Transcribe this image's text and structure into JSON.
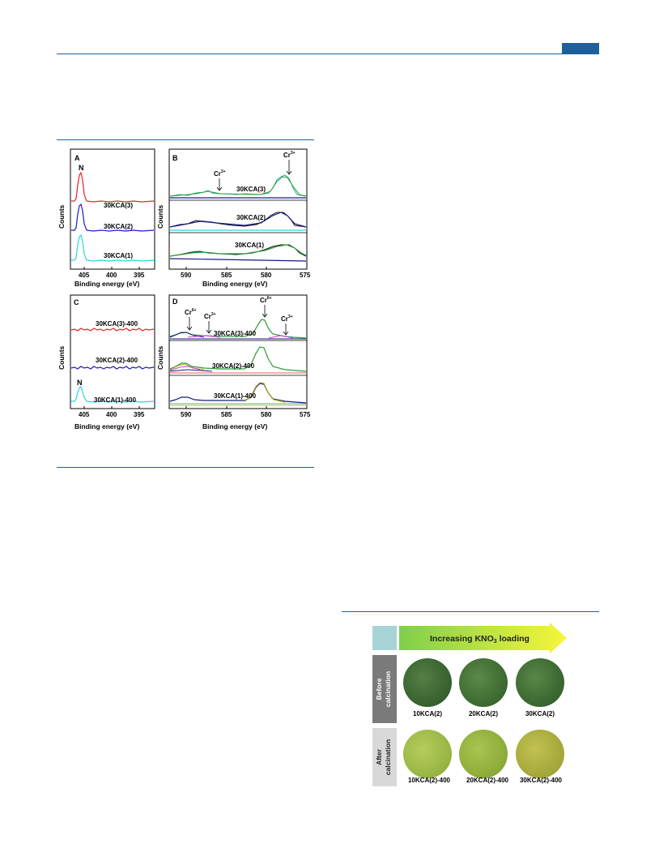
{
  "header": {
    "accent_color": "#1f5f9c"
  },
  "figure_xps": {
    "ylabel": "Counts",
    "xlabel": "Binding energy (eV)",
    "panels": {
      "A": {
        "letter": "A",
        "peak_label": "N",
        "ticks": [
          "405",
          "400",
          "395"
        ],
        "series": [
          "30KCA(3)",
          "30KCA(2)",
          "30KCA(1)"
        ]
      },
      "B": {
        "letter": "B",
        "cr3_left": "Cr",
        "cr3_left_sup": "3+",
        "cr3_right": "Cr",
        "cr3_right_sup": "3+",
        "ticks": [
          "590",
          "585",
          "580",
          "575"
        ],
        "series": [
          "30KCA(3)",
          "30KCA(2)",
          "30KCA(1)"
        ]
      },
      "C": {
        "letter": "C",
        "peak_label": "N",
        "ticks": [
          "405",
          "400",
          "395"
        ],
        "series": [
          "30KCA(3)-400",
          "30KCA(2)-400",
          "30KCA(1)-400"
        ]
      },
      "D": {
        "letter": "D",
        "cr6_a": "Cr",
        "cr6_a_sup": "6+",
        "cr3_a": "Cr",
        "cr3_a_sup": "3+",
        "cr6_b": "Cr",
        "cr6_b_sup": "6+",
        "cr3_b": "Cr",
        "cr3_b_sup": "3+",
        "ticks": [
          "590",
          "585",
          "580",
          "575"
        ],
        "series": [
          "30KCA(3)-400",
          "30KCA(2)-400",
          "30KCA(1)-400"
        ]
      }
    },
    "colors": {
      "red": "#e8242a",
      "blue": "#1c1cc8",
      "cyan": "#25d6dd",
      "black": "#111111",
      "navy": "#1a1a80",
      "green": "#2e9b3a",
      "magenta": "#d23fd2",
      "olive": "#a8a020"
    }
  },
  "figure_photos": {
    "banner": "Increasing KNO",
    "banner_sub": "3",
    "banner_tail": " loading",
    "row1_label": "Before calcination",
    "row2_label": "After calcination",
    "row1": [
      "10KCA(2)",
      "20KCA(2)",
      "30KCA(2)"
    ],
    "row2": [
      "10KCA(2)-400",
      "20KCA(2)-400",
      "30KCA(2)-400"
    ],
    "colors": {
      "banner_start": "#7fcf4a",
      "banner_end": "#f6f63a",
      "row1_swatch": "#3d6b33",
      "row2_swatch_1": "#9ab845",
      "row2_swatch_2": "#8fae3a",
      "row2_swatch_3": "#a7a93c"
    }
  }
}
